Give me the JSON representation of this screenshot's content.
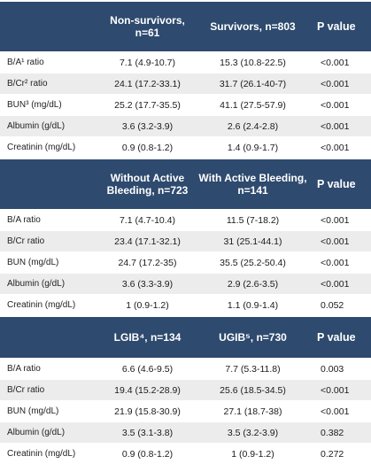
{
  "section1": {
    "headers": [
      "",
      "Non-survivors,\nn=61",
      "Survivors, n=803",
      "P value"
    ],
    "rows": [
      [
        "B/A¹ ratio",
        "7.1 (4.9-10.7)",
        "15.3 (10.8-22.5)",
        "<0.001"
      ],
      [
        "B/Cr² ratio",
        "24.1 (17.2-33.1)",
        "31.7 (26.1-40-7)",
        "<0.001"
      ],
      [
        "BUN³ (mg/dL)",
        "25.2 (17.7-35.5)",
        "41.1 (27.5-57.9)",
        "<0.001"
      ],
      [
        "Albumin (g/dL)",
        "3.6 (3.2-3.9)",
        "2.6 (2.4-2.8)",
        "<0.001"
      ],
      [
        "Creatinin (mg/dL)",
        "0.9 (0.8-1.2)",
        "1.4 (0.9-1.7)",
        "<0.001"
      ]
    ]
  },
  "section2": {
    "headers": [
      "",
      "Without Active\nBleeding, n=723",
      "With Active Bleeding,\nn=141",
      "P value"
    ],
    "rows": [
      [
        "B/A ratio",
        "7.1 (4.7-10.4)",
        "11.5 (7-18.2)",
        "<0.001"
      ],
      [
        "B/Cr ratio",
        "23.4 (17.1-32.1)",
        "31 (25.1-44.1)",
        "<0.001"
      ],
      [
        "BUN (mg/dL)",
        "24.7 (17.2-35)",
        "35.5 (25.2-50.4)",
        "<0.001"
      ],
      [
        "Albumin (g/dL)",
        "3.6 (3.3-3.9)",
        "2.9 (2.6-3.5)",
        "<0.001"
      ],
      [
        "Creatinin (mg/dL)",
        "1 (0.9-1.2)",
        "1.1 (0.9-1.4)",
        "0.052"
      ]
    ]
  },
  "section3": {
    "headers": [
      "",
      "LGIB⁴, n=134",
      "UGIB⁵, n=730",
      "P value"
    ],
    "rows": [
      [
        "B/A ratio",
        "6.6 (4.6-9.5)",
        "7.7 (5.3-11.8)",
        "0.003"
      ],
      [
        "B/Cr ratio",
        "19.4 (15.2-28.9)",
        "25.6 (18.5-34.5)",
        "<0.001"
      ],
      [
        "BUN (mg/dL)",
        "21.9 (15.8-30.9)",
        "27.1 (18.7-38)",
        "<0.001"
      ],
      [
        "Albumin (g/dL)",
        "3.5 (3.1-3.8)",
        "3.5 (3.2-3.9)",
        "0.382"
      ],
      [
        "Creatinin (mg/dL)",
        "0.9 (0.8-1.2)",
        "1 (0.9-1.2)",
        "0.272"
      ]
    ]
  },
  "colors": {
    "header_bg": "#2e4a6e",
    "header_text": "#ffffff",
    "stripe": "#ececec"
  }
}
